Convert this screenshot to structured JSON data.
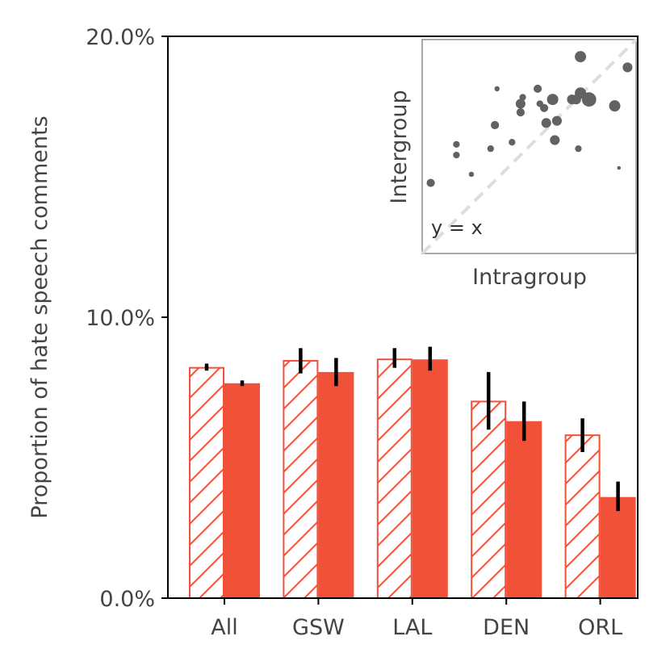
{
  "chart_data": [
    {
      "type": "bar",
      "title": "",
      "xlabel": "",
      "ylabel": "Proportion of hate speech comments",
      "ylim": [
        0,
        20
      ],
      "yticks": [
        0,
        10,
        20
      ],
      "ytick_labels": [
        "0.0%",
        "10.0%",
        "20.0%"
      ],
      "categories": [
        "All",
        "GSW",
        "LAL",
        "DEN",
        "ORL"
      ],
      "series": [
        {
          "name": "Intragroup",
          "style": "hatched",
          "values": [
            8.2,
            8.45,
            8.5,
            7.0,
            5.8
          ],
          "error_low": [
            8.1,
            8.0,
            8.2,
            6.0,
            5.2
          ],
          "error_high": [
            8.35,
            8.9,
            8.9,
            8.05,
            6.4
          ]
        },
        {
          "name": "Intergroup",
          "style": "solid",
          "values": [
            7.65,
            8.05,
            8.5,
            6.3,
            3.6
          ],
          "error_low": [
            7.55,
            7.55,
            8.1,
            5.6,
            3.1
          ],
          "error_high": [
            7.75,
            8.55,
            8.95,
            7.0,
            4.15
          ]
        }
      ],
      "colors": {
        "bar": "#f15039",
        "error": "#000000",
        "axis": "#000000",
        "text": "#444444"
      },
      "legend": "none"
    },
    {
      "type": "scatter",
      "title": "",
      "xlabel": "Intragroup",
      "ylabel": "Intergroup",
      "xlim": [
        0,
        10
      ],
      "ylim": [
        0,
        10
      ],
      "annotation": "y = x",
      "reference_line": "y = x",
      "points": [
        {
          "x": 0.4,
          "y": 3.3,
          "size": 4
        },
        {
          "x": 1.6,
          "y": 4.6,
          "size": 3
        },
        {
          "x": 1.6,
          "y": 5.1,
          "size": 3
        },
        {
          "x": 2.3,
          "y": 3.7,
          "size": 2
        },
        {
          "x": 3.2,
          "y": 4.9,
          "size": 3
        },
        {
          "x": 3.4,
          "y": 6.0,
          "size": 4
        },
        {
          "x": 3.5,
          "y": 7.7,
          "size": 2
        },
        {
          "x": 4.2,
          "y": 5.2,
          "size": 3
        },
        {
          "x": 4.6,
          "y": 7.0,
          "size": 5
        },
        {
          "x": 4.6,
          "y": 6.6,
          "size": 4
        },
        {
          "x": 4.7,
          "y": 7.3,
          "size": 3
        },
        {
          "x": 5.4,
          "y": 7.7,
          "size": 4
        },
        {
          "x": 5.5,
          "y": 7.0,
          "size": 3
        },
        {
          "x": 5.7,
          "y": 6.8,
          "size": 4
        },
        {
          "x": 5.8,
          "y": 6.1,
          "size": 5
        },
        {
          "x": 6.1,
          "y": 7.2,
          "size": 6
        },
        {
          "x": 6.2,
          "y": 5.3,
          "size": 5
        },
        {
          "x": 6.3,
          "y": 6.2,
          "size": 5
        },
        {
          "x": 7.0,
          "y": 7.2,
          "size": 5
        },
        {
          "x": 7.2,
          "y": 7.2,
          "size": 5
        },
        {
          "x": 7.4,
          "y": 7.5,
          "size": 6
        },
        {
          "x": 7.4,
          "y": 9.2,
          "size": 6
        },
        {
          "x": 7.3,
          "y": 4.9,
          "size": 3
        },
        {
          "x": 7.8,
          "y": 7.2,
          "size": 8
        },
        {
          "x": 9.0,
          "y": 6.9,
          "size": 6
        },
        {
          "x": 9.2,
          "y": 4.0,
          "size": 1
        },
        {
          "x": 9.6,
          "y": 8.7,
          "size": 5
        }
      ],
      "colors": {
        "point": "#626262",
        "reference": "#dddddd",
        "frame": "#8c8c8c"
      }
    }
  ]
}
